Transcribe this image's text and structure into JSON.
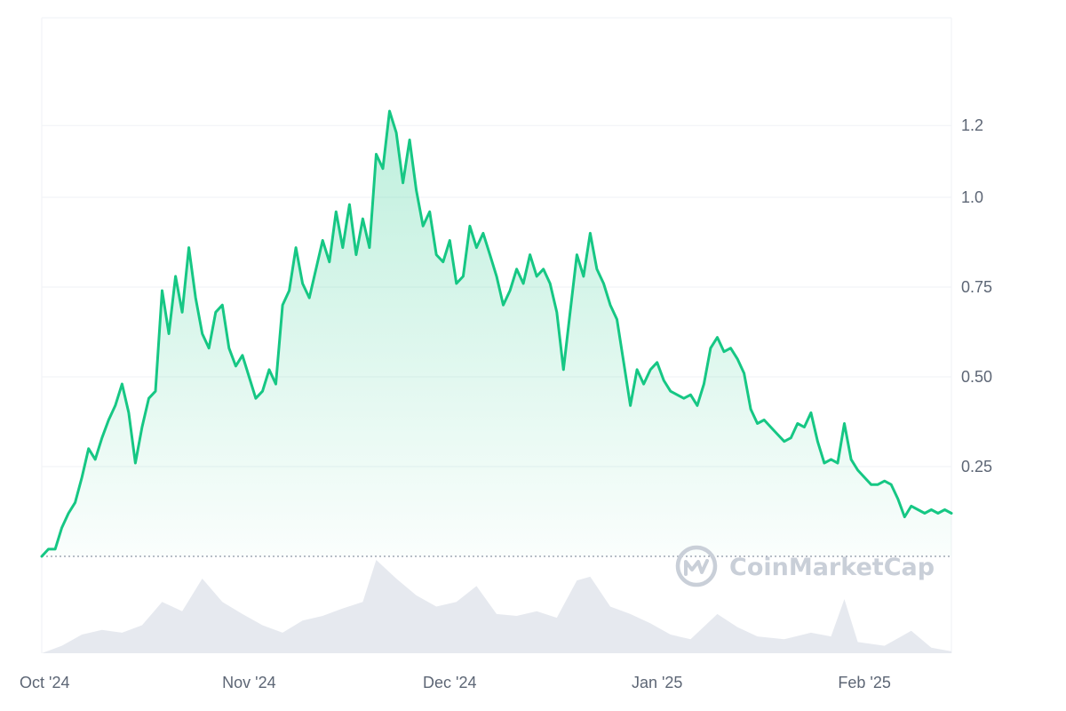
{
  "chart_data": {
    "type": "area",
    "title": "",
    "xlabel": "",
    "ylabel": "",
    "x_range": [
      "2024-10-01",
      "2025-02-14"
    ],
    "ylim": [
      0,
      1.4
    ],
    "y_ticks": [
      0.25,
      0.5,
      0.75,
      1.0,
      1.2
    ],
    "y_tick_labels": [
      "0.25",
      "0.50",
      "0.75",
      "1.0",
      "1.2"
    ],
    "x_ticks": [
      {
        "date": "2024-10-01",
        "label": "Oct '24"
      },
      {
        "date": "2024-11-01",
        "label": "Nov '24"
      },
      {
        "date": "2024-12-01",
        "label": "Dec '24"
      },
      {
        "date": "2025-01-01",
        "label": "Jan '25"
      },
      {
        "date": "2025-02-01",
        "label": "Feb '25"
      }
    ],
    "grid": true,
    "baseline_value": 0,
    "colors": {
      "line": "#16c784",
      "volume": "#e6e9ef",
      "grid": "#eff2f5",
      "baseline": "#8d96a5"
    },
    "series": [
      {
        "kind": "price",
        "points": [
          [
            "2024-10-01",
            0.0
          ],
          [
            "2024-10-02",
            0.02
          ],
          [
            "2024-10-03",
            0.02
          ],
          [
            "2024-10-04",
            0.08
          ],
          [
            "2024-10-05",
            0.12
          ],
          [
            "2024-10-06",
            0.15
          ],
          [
            "2024-10-07",
            0.22
          ],
          [
            "2024-10-08",
            0.3
          ],
          [
            "2024-10-09",
            0.27
          ],
          [
            "2024-10-10",
            0.33
          ],
          [
            "2024-10-11",
            0.38
          ],
          [
            "2024-10-12",
            0.42
          ],
          [
            "2024-10-13",
            0.48
          ],
          [
            "2024-10-14",
            0.4
          ],
          [
            "2024-10-15",
            0.26
          ],
          [
            "2024-10-16",
            0.36
          ],
          [
            "2024-10-17",
            0.44
          ],
          [
            "2024-10-18",
            0.46
          ],
          [
            "2024-10-19",
            0.74
          ],
          [
            "2024-10-20",
            0.62
          ],
          [
            "2024-10-21",
            0.78
          ],
          [
            "2024-10-22",
            0.68
          ],
          [
            "2024-10-23",
            0.86
          ],
          [
            "2024-10-24",
            0.72
          ],
          [
            "2024-10-25",
            0.62
          ],
          [
            "2024-10-26",
            0.58
          ],
          [
            "2024-10-27",
            0.68
          ],
          [
            "2024-10-28",
            0.7
          ],
          [
            "2024-10-29",
            0.58
          ],
          [
            "2024-10-30",
            0.53
          ],
          [
            "2024-10-31",
            0.56
          ],
          [
            "2024-11-01",
            0.5
          ],
          [
            "2024-11-02",
            0.44
          ],
          [
            "2024-11-03",
            0.46
          ],
          [
            "2024-11-04",
            0.52
          ],
          [
            "2024-11-05",
            0.48
          ],
          [
            "2024-11-06",
            0.7
          ],
          [
            "2024-11-07",
            0.74
          ],
          [
            "2024-11-08",
            0.86
          ],
          [
            "2024-11-09",
            0.76
          ],
          [
            "2024-11-10",
            0.72
          ],
          [
            "2024-11-11",
            0.8
          ],
          [
            "2024-11-12",
            0.88
          ],
          [
            "2024-11-13",
            0.82
          ],
          [
            "2024-11-14",
            0.96
          ],
          [
            "2024-11-15",
            0.86
          ],
          [
            "2024-11-16",
            0.98
          ],
          [
            "2024-11-17",
            0.84
          ],
          [
            "2024-11-18",
            0.94
          ],
          [
            "2024-11-19",
            0.86
          ],
          [
            "2024-11-20",
            1.12
          ],
          [
            "2024-11-21",
            1.08
          ],
          [
            "2024-11-22",
            1.24
          ],
          [
            "2024-11-23",
            1.18
          ],
          [
            "2024-11-24",
            1.04
          ],
          [
            "2024-11-25",
            1.16
          ],
          [
            "2024-11-26",
            1.02
          ],
          [
            "2024-11-27",
            0.92
          ],
          [
            "2024-11-28",
            0.96
          ],
          [
            "2024-11-29",
            0.84
          ],
          [
            "2024-11-30",
            0.82
          ],
          [
            "2024-12-01",
            0.88
          ],
          [
            "2024-12-02",
            0.76
          ],
          [
            "2024-12-03",
            0.78
          ],
          [
            "2024-12-04",
            0.92
          ],
          [
            "2024-12-05",
            0.86
          ],
          [
            "2024-12-06",
            0.9
          ],
          [
            "2024-12-07",
            0.84
          ],
          [
            "2024-12-08",
            0.78
          ],
          [
            "2024-12-09",
            0.7
          ],
          [
            "2024-12-10",
            0.74
          ],
          [
            "2024-12-11",
            0.8
          ],
          [
            "2024-12-12",
            0.76
          ],
          [
            "2024-12-13",
            0.84
          ],
          [
            "2024-12-14",
            0.78
          ],
          [
            "2024-12-15",
            0.8
          ],
          [
            "2024-12-16",
            0.76
          ],
          [
            "2024-12-17",
            0.68
          ],
          [
            "2024-12-18",
            0.52
          ],
          [
            "2024-12-19",
            0.68
          ],
          [
            "2024-12-20",
            0.84
          ],
          [
            "2024-12-21",
            0.78
          ],
          [
            "2024-12-22",
            0.9
          ],
          [
            "2024-12-23",
            0.8
          ],
          [
            "2024-12-24",
            0.76
          ],
          [
            "2024-12-25",
            0.7
          ],
          [
            "2024-12-26",
            0.66
          ],
          [
            "2024-12-27",
            0.54
          ],
          [
            "2024-12-28",
            0.42
          ],
          [
            "2024-12-29",
            0.52
          ],
          [
            "2024-12-30",
            0.48
          ],
          [
            "2024-12-31",
            0.52
          ],
          [
            "2025-01-01",
            0.54
          ],
          [
            "2025-01-02",
            0.49
          ],
          [
            "2025-01-03",
            0.46
          ],
          [
            "2025-01-04",
            0.45
          ],
          [
            "2025-01-05",
            0.44
          ],
          [
            "2025-01-06",
            0.45
          ],
          [
            "2025-01-07",
            0.42
          ],
          [
            "2025-01-08",
            0.48
          ],
          [
            "2025-01-09",
            0.58
          ],
          [
            "2025-01-10",
            0.61
          ],
          [
            "2025-01-11",
            0.57
          ],
          [
            "2025-01-12",
            0.58
          ],
          [
            "2025-01-13",
            0.55
          ],
          [
            "2025-01-14",
            0.51
          ],
          [
            "2025-01-15",
            0.41
          ],
          [
            "2025-01-16",
            0.37
          ],
          [
            "2025-01-17",
            0.38
          ],
          [
            "2025-01-18",
            0.36
          ],
          [
            "2025-01-19",
            0.34
          ],
          [
            "2025-01-20",
            0.32
          ],
          [
            "2025-01-21",
            0.33
          ],
          [
            "2025-01-22",
            0.37
          ],
          [
            "2025-01-23",
            0.36
          ],
          [
            "2025-01-24",
            0.4
          ],
          [
            "2025-01-25",
            0.32
          ],
          [
            "2025-01-26",
            0.26
          ],
          [
            "2025-01-27",
            0.27
          ],
          [
            "2025-01-28",
            0.26
          ],
          [
            "2025-01-29",
            0.37
          ],
          [
            "2025-01-30",
            0.27
          ],
          [
            "2025-01-31",
            0.24
          ],
          [
            "2025-02-01",
            0.22
          ],
          [
            "2025-02-02",
            0.2
          ],
          [
            "2025-02-03",
            0.2
          ],
          [
            "2025-02-04",
            0.21
          ],
          [
            "2025-02-05",
            0.2
          ],
          [
            "2025-02-06",
            0.16
          ],
          [
            "2025-02-07",
            0.11
          ],
          [
            "2025-02-08",
            0.14
          ],
          [
            "2025-02-09",
            0.13
          ],
          [
            "2025-02-10",
            0.12
          ],
          [
            "2025-02-11",
            0.13
          ],
          [
            "2025-02-12",
            0.12
          ],
          [
            "2025-02-13",
            0.13
          ],
          [
            "2025-02-14",
            0.12
          ]
        ]
      },
      {
        "kind": "volume",
        "points": [
          [
            "2024-10-01",
            0.0
          ],
          [
            "2024-10-04",
            0.08
          ],
          [
            "2024-10-07",
            0.2
          ],
          [
            "2024-10-10",
            0.25
          ],
          [
            "2024-10-13",
            0.22
          ],
          [
            "2024-10-16",
            0.3
          ],
          [
            "2024-10-19",
            0.55
          ],
          [
            "2024-10-22",
            0.45
          ],
          [
            "2024-10-25",
            0.8
          ],
          [
            "2024-10-28",
            0.55
          ],
          [
            "2024-10-31",
            0.42
          ],
          [
            "2024-11-03",
            0.3
          ],
          [
            "2024-11-06",
            0.22
          ],
          [
            "2024-11-09",
            0.35
          ],
          [
            "2024-11-12",
            0.4
          ],
          [
            "2024-11-15",
            0.48
          ],
          [
            "2024-11-18",
            0.55
          ],
          [
            "2024-11-20",
            1.0
          ],
          [
            "2024-11-23",
            0.8
          ],
          [
            "2024-11-26",
            0.62
          ],
          [
            "2024-11-29",
            0.5
          ],
          [
            "2024-12-02",
            0.55
          ],
          [
            "2024-12-05",
            0.72
          ],
          [
            "2024-12-08",
            0.42
          ],
          [
            "2024-12-11",
            0.4
          ],
          [
            "2024-12-14",
            0.45
          ],
          [
            "2024-12-17",
            0.38
          ],
          [
            "2024-12-20",
            0.78
          ],
          [
            "2024-12-22",
            0.82
          ],
          [
            "2024-12-25",
            0.5
          ],
          [
            "2024-12-28",
            0.42
          ],
          [
            "2024-12-31",
            0.32
          ],
          [
            "2025-01-03",
            0.2
          ],
          [
            "2025-01-06",
            0.15
          ],
          [
            "2025-01-10",
            0.42
          ],
          [
            "2025-01-13",
            0.28
          ],
          [
            "2025-01-16",
            0.18
          ],
          [
            "2025-01-20",
            0.15
          ],
          [
            "2025-01-24",
            0.22
          ],
          [
            "2025-01-27",
            0.18
          ],
          [
            "2025-01-29",
            0.58
          ],
          [
            "2025-01-31",
            0.12
          ],
          [
            "2025-02-04",
            0.08
          ],
          [
            "2025-02-08",
            0.24
          ],
          [
            "2025-02-11",
            0.06
          ],
          [
            "2025-02-14",
            0.02
          ]
        ]
      }
    ]
  },
  "watermark": {
    "text": "CoinMarketCap",
    "icon": "coinmarketcap-logo-icon"
  }
}
